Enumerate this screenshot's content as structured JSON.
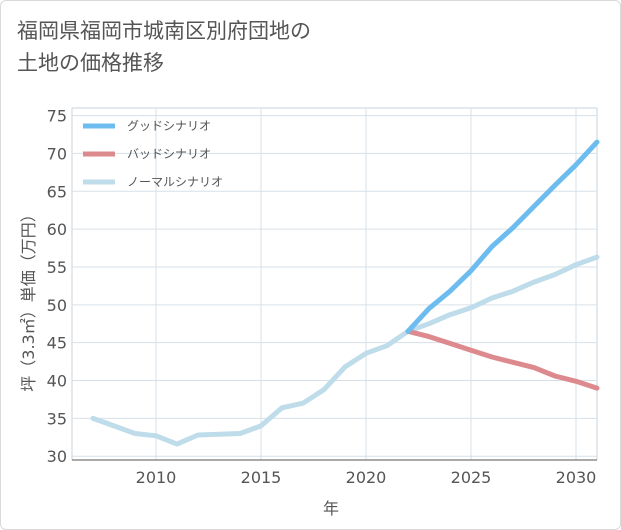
{
  "chart_data": {
    "type": "line",
    "title_lines": [
      "福岡県福岡市城南区別府団地の",
      "土地の価格推移"
    ],
    "xlabel": "年",
    "ylabel": "坪（3.3㎡）単価（万円）",
    "xlim": [
      2006,
      2031
    ],
    "ylim": [
      29.5,
      76
    ],
    "x_ticks": [
      2010,
      2015,
      2020,
      2025,
      2030
    ],
    "y_ticks": [
      30,
      35,
      40,
      45,
      50,
      55,
      60,
      65,
      70,
      75
    ],
    "grid": true,
    "legend_position": "top-left",
    "series": [
      {
        "name": "グッドシナリオ",
        "color": "#6cbcf0",
        "x": [
          2022,
          2023,
          2024,
          2025,
          2026,
          2027,
          2028,
          2029,
          2030,
          2031
        ],
        "values": [
          46.5,
          49.5,
          51.8,
          54.5,
          57.7,
          60.2,
          63.0,
          65.8,
          68.5,
          71.5
        ]
      },
      {
        "name": "バッドシナリオ",
        "color": "#dd8a8f",
        "x": [
          2022,
          2023,
          2024,
          2025,
          2026,
          2027,
          2028,
          2029,
          2030,
          2031
        ],
        "values": [
          46.5,
          45.8,
          44.9,
          44.0,
          43.1,
          42.4,
          41.7,
          40.6,
          39.9,
          39.0
        ]
      },
      {
        "name": "ノーマルシナリオ",
        "color": "#bfdcea",
        "x": [
          2007,
          2008,
          2009,
          2010,
          2011,
          2012,
          2013,
          2014,
          2015,
          2016,
          2017,
          2018,
          2019,
          2020,
          2021,
          2022,
          2023,
          2024,
          2025,
          2026,
          2027,
          2028,
          2029,
          2030,
          2031
        ],
        "values": [
          35.0,
          34.0,
          33.0,
          32.7,
          31.6,
          32.8,
          32.9,
          33.0,
          34.0,
          36.4,
          37.0,
          38.8,
          41.8,
          43.6,
          44.6,
          46.5,
          47.5,
          48.7,
          49.6,
          50.9,
          51.8,
          53.0,
          54.0,
          55.3,
          56.3
        ]
      }
    ]
  }
}
